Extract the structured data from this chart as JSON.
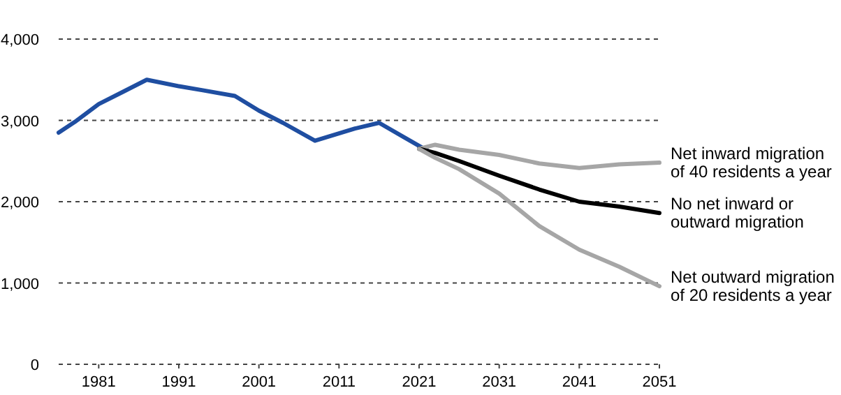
{
  "chart_data": {
    "type": "line",
    "xlim": [
      1976,
      2051
    ],
    "xticks": [
      1981,
      1991,
      2001,
      2011,
      2021,
      2031,
      2041,
      2051
    ],
    "ylim": [
      0,
      4000
    ],
    "yticks": [
      0,
      {
        "value": 1000,
        "label": "1,000"
      },
      {
        "value": 2000,
        "label": "2,000"
      },
      {
        "value": 3000,
        "label": "3,000"
      },
      {
        "value": 4000,
        "label": "4,000"
      }
    ],
    "grid": "y",
    "line_style": "solid",
    "marker": "none",
    "legend": false,
    "series": [
      {
        "color": "#1f4ea1",
        "x": [
          1976,
          1978,
          1981,
          1984,
          1987,
          1991,
          1994,
          1998,
          2001,
          2004,
          2008,
          2011,
          2013,
          2016,
          2019,
          2022
        ],
        "values": [
          2850,
          2980,
          3200,
          3350,
          3500,
          3420,
          3370,
          3300,
          3120,
          2970,
          2750,
          2840,
          2900,
          2970,
          2800,
          2630
        ]
      },
      {
        "name": "Net inward migration of 40 residents a year",
        "color": "#a6a6a6",
        "x": [
          2021,
          2023,
          2026,
          2031,
          2036,
          2041,
          2046,
          2051
        ],
        "values": [
          2650,
          2700,
          2640,
          2575,
          2470,
          2415,
          2460,
          2480
        ]
      },
      {
        "name": "No net inward or outward migration",
        "color": "#000000",
        "x": [
          2021,
          2023,
          2026,
          2031,
          2036,
          2041,
          2046,
          2051
        ],
        "values": [
          2650,
          2600,
          2500,
          2320,
          2150,
          2000,
          1940,
          1860
        ]
      },
      {
        "name": "Net outward migration of 20 residents a year",
        "color": "#a6a6a6",
        "x": [
          2021,
          2023,
          2026,
          2031,
          2036,
          2041,
          2046,
          2051
        ],
        "values": [
          2650,
          2540,
          2400,
          2100,
          1700,
          1410,
          1200,
          960
        ]
      }
    ]
  }
}
